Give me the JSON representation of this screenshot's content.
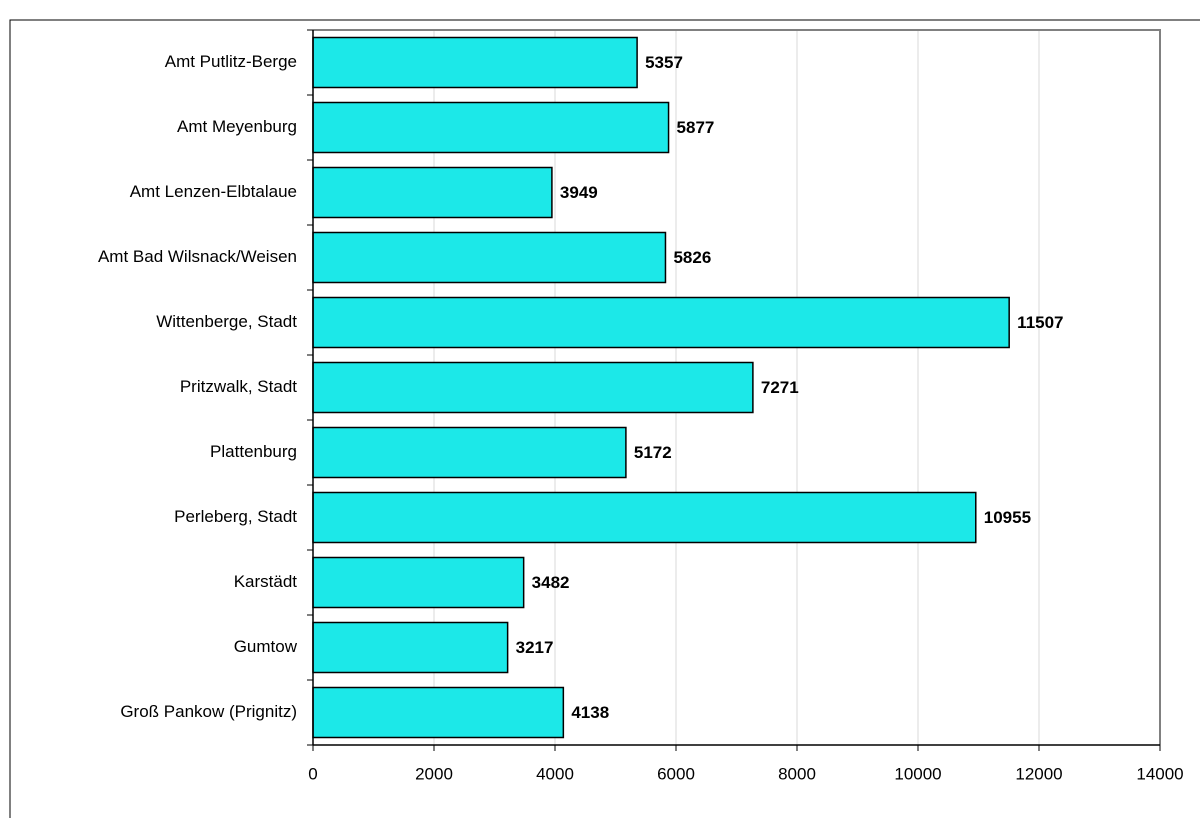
{
  "chart_data": {
    "type": "barh",
    "categories": [
      "Amt Putlitz-Berge",
      "Amt Meyenburg",
      "Amt Lenzen-Elbtalaue",
      "Amt Bad Wilsnack/Weisen",
      "Wittenberge, Stadt",
      "Pritzwalk, Stadt",
      "Plattenburg",
      "Perleberg, Stadt",
      "Karstädt",
      "Gumtow",
      "Groß Pankow (Prignitz)"
    ],
    "values": [
      5357,
      5877,
      3949,
      5826,
      11507,
      7271,
      5172,
      10955,
      3482,
      3217,
      4138
    ],
    "color": "#1ce8e8",
    "xlim": [
      0,
      14000
    ],
    "xticks": [
      0,
      2000,
      4000,
      6000,
      8000,
      10000,
      12000,
      14000
    ],
    "grid": true
  }
}
